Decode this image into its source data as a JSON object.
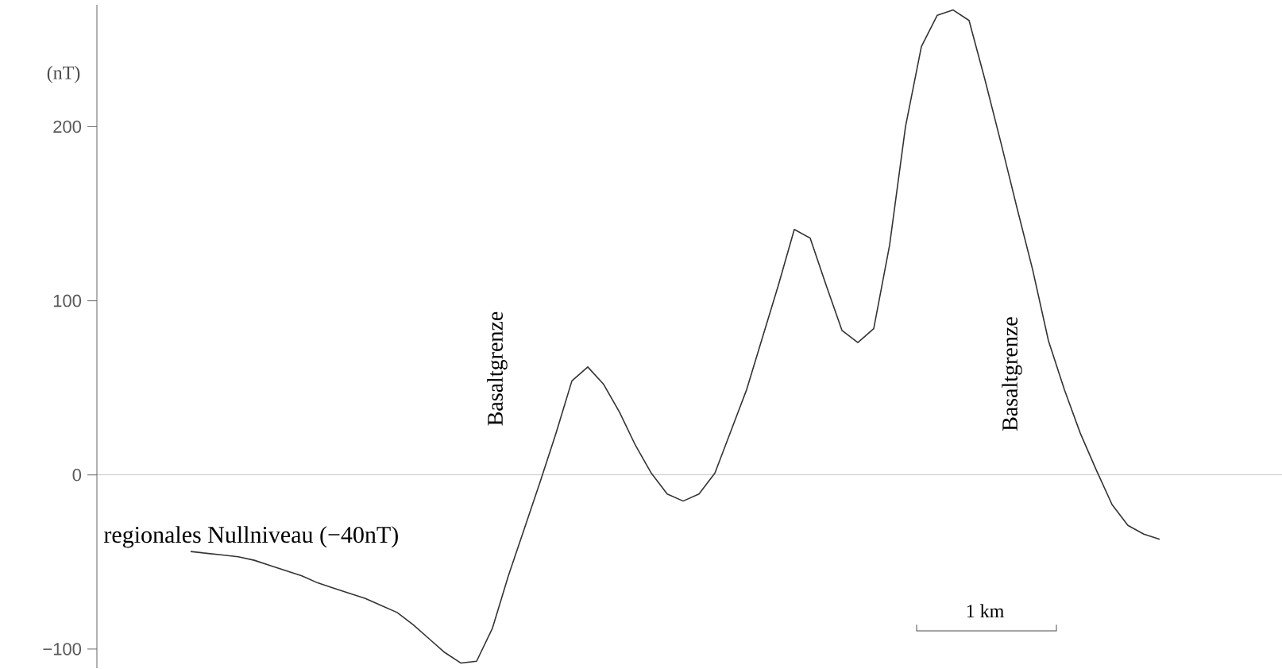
{
  "chart_data": {
    "type": "line",
    "ylabel": "(nT)",
    "categories": [
      null,
      null,
      null,
      null,
      null,
      null,
      null,
      null,
      null,
      null,
      null,
      null,
      null,
      null,
      null,
      null,
      null,
      null,
      null,
      null,
      null,
      null,
      null,
      null,
      null,
      null,
      null,
      null,
      null,
      null,
      null,
      null,
      null,
      null,
      null,
      null,
      null,
      null,
      null,
      null,
      null,
      null,
      null,
      null,
      null,
      null,
      null,
      null,
      null,
      null,
      null,
      null,
      null,
      null,
      null,
      null,
      null,
      null,
      null,
      null,
      null,
      null
    ],
    "series": [
      {
        "color": "#333333",
        "values": [
          -44,
          -45,
          -46,
          -47,
          -49,
          -52,
          -55,
          -58,
          -62,
          -65,
          -68,
          -71,
          -75,
          -79,
          -86,
          -94,
          -102,
          -108,
          -107,
          -88,
          -58,
          -31,
          -4,
          24,
          54,
          62,
          52,
          36,
          17,
          1,
          -11,
          -15,
          -11,
          1,
          25,
          49,
          79,
          109,
          141,
          136,
          109,
          83,
          76,
          84,
          132,
          200,
          246,
          264,
          267,
          261,
          227,
          191,
          154,
          118,
          77,
          49,
          24,
          3,
          -17,
          -29,
          -34,
          -37
        ]
      }
    ],
    "ylim": [
      -111,
      270
    ],
    "yticks": [
      {
        "value": -100,
        "label": "−100"
      },
      0,
      100,
      200
    ],
    "tick_labels": "y",
    "ref_lines": [
      {
        "axis": "y",
        "value": 0,
        "color": "#bbbbbb"
      }
    ],
    "annotations": [
      "regionales Nullniveau (−40nT)",
      "Basaltgrenze",
      "Basaltgrenze",
      "1 km"
    ],
    "grid": false,
    "marker": "none",
    "line_style": "solid"
  }
}
